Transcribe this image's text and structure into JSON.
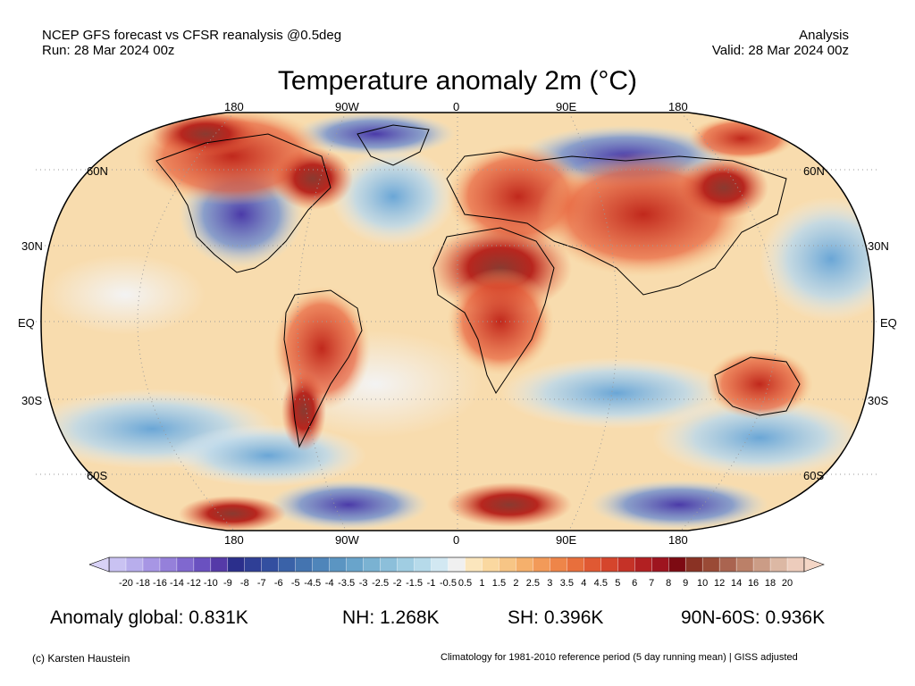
{
  "header": {
    "line1_left": "NCEP GFS forecast vs CFSR reanalysis @0.5deg",
    "line2_left": "Run: 28 Mar 2024 00z",
    "line1_right": "Analysis",
    "line2_right": "Valid: 28 Mar 2024 00z"
  },
  "title": "Temperature anomaly 2m (°C)",
  "map": {
    "projection": "Robinson",
    "lon_labels": [
      "180",
      "90W",
      "0",
      "90E",
      "180"
    ],
    "lat_labels": [
      "60N",
      "30N",
      "EQ",
      "30S",
      "60S"
    ],
    "colors": {
      "ocean_base": "#f7d9a8",
      "warm": "#d7301f",
      "hot": "#8b3a2f",
      "cold": "#6a51a3",
      "cool": "#9ecae1",
      "neutral": "#f2f2f2"
    }
  },
  "colorbar": {
    "labels": [
      "-20",
      "-18",
      "-16",
      "-14",
      "-12",
      "-10",
      "-9",
      "-8",
      "-7",
      "-6",
      "-5",
      "-4.5",
      "-4",
      "-3.5",
      "-3",
      "-2.5",
      "-2",
      "-1.5",
      "-1",
      "-0.5",
      "0.5",
      "1",
      "1.5",
      "2",
      "2.5",
      "3",
      "3.5",
      "4",
      "4.5",
      "5",
      "6",
      "7",
      "8",
      "9",
      "10",
      "12",
      "14",
      "16",
      "18",
      "20"
    ],
    "colors": [
      "#c9c2f2",
      "#b8aeec",
      "#a796e4",
      "#9580da",
      "#8068cf",
      "#6a51c0",
      "#553aa8",
      "#2b2f8c",
      "#2f3f96",
      "#334fa0",
      "#3a62a8",
      "#4474b0",
      "#4f85ba",
      "#5b95c2",
      "#69a4cb",
      "#7ab2d2",
      "#8cbfda",
      "#a0cde2",
      "#b6daea",
      "#d2e8f2",
      "#f0f0f0",
      "#fbe6bd",
      "#fad8a0",
      "#f7c585",
      "#f5b06c",
      "#f29a59",
      "#ee8549",
      "#e86f3c",
      "#e05933",
      "#d5452c",
      "#c53227",
      "#b22022",
      "#9e141f",
      "#7d0a12",
      "#8a3224",
      "#9a4a36",
      "#aa6450",
      "#bb8068",
      "#cb9c86",
      "#dcb8a4",
      "#edccbc"
    ],
    "left_arrow_color": "#d8d2f6",
    "right_arrow_color": "#f4d6c6"
  },
  "stats": {
    "global": "Anomaly global: 0.831K",
    "nh": "NH: 1.268K",
    "sh": "SH: 0.396K",
    "arctic": "90N-60S: 0.936K"
  },
  "footer": {
    "left": "(c) Karsten Haustein",
    "right": "Climatology for 1981-2010 reference period (5 day running mean) | GISS adjusted"
  }
}
